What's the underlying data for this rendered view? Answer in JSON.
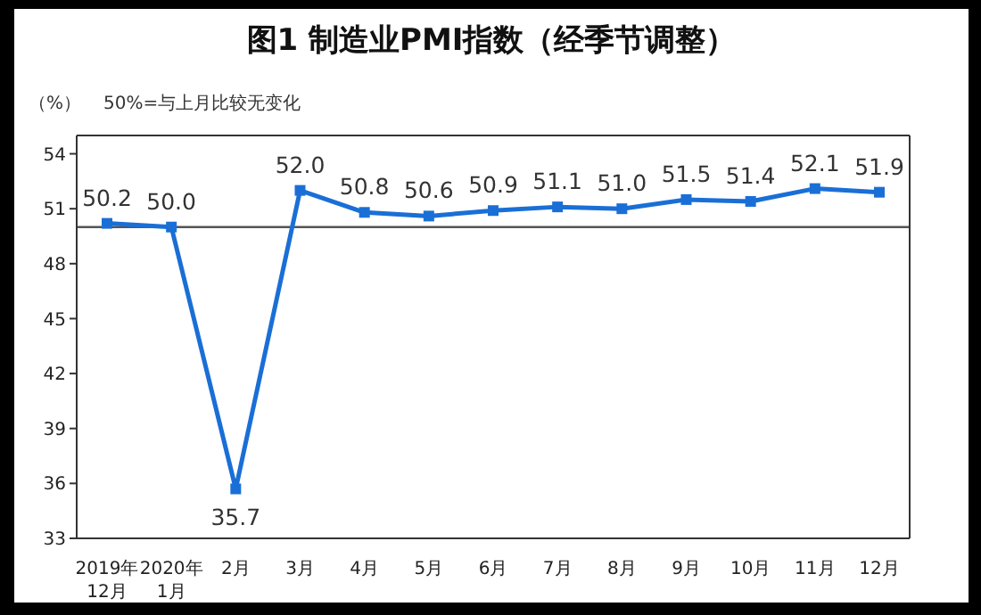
{
  "chart_data": {
    "type": "line",
    "title": "图1 制造业PMI指数（经季节调整）",
    "ylabel": "（%）",
    "annotations": [
      "50%=与上月比较无变化"
    ],
    "categories": [
      "2019年\n12月",
      "2020年\n1月",
      "2月",
      "3月",
      "4月",
      "5月",
      "6月",
      "7月",
      "8月",
      "9月",
      "10月",
      "11月",
      "12月"
    ],
    "series": [
      {
        "color": "#1a6fd6",
        "values": [
          50.2,
          50.0,
          35.7,
          52.0,
          50.8,
          50.6,
          50.9,
          51.1,
          51.0,
          51.5,
          51.4,
          52.1,
          51.9
        ],
        "value_labels": [
          "50.2",
          "50.0",
          "35.7",
          "52.0",
          "50.8",
          "50.6",
          "50.9",
          "51.1",
          "51.0",
          "51.5",
          "51.4",
          "52.1",
          "51.9"
        ]
      }
    ],
    "ylim": [
      33,
      55
    ],
    "yticks": [
      33,
      36,
      39,
      42,
      45,
      48,
      51,
      54
    ],
    "ref_lines": [
      {
        "axis": "y",
        "value": 50,
        "color": "#555555"
      }
    ],
    "marker": "square",
    "line_style": "solid"
  }
}
